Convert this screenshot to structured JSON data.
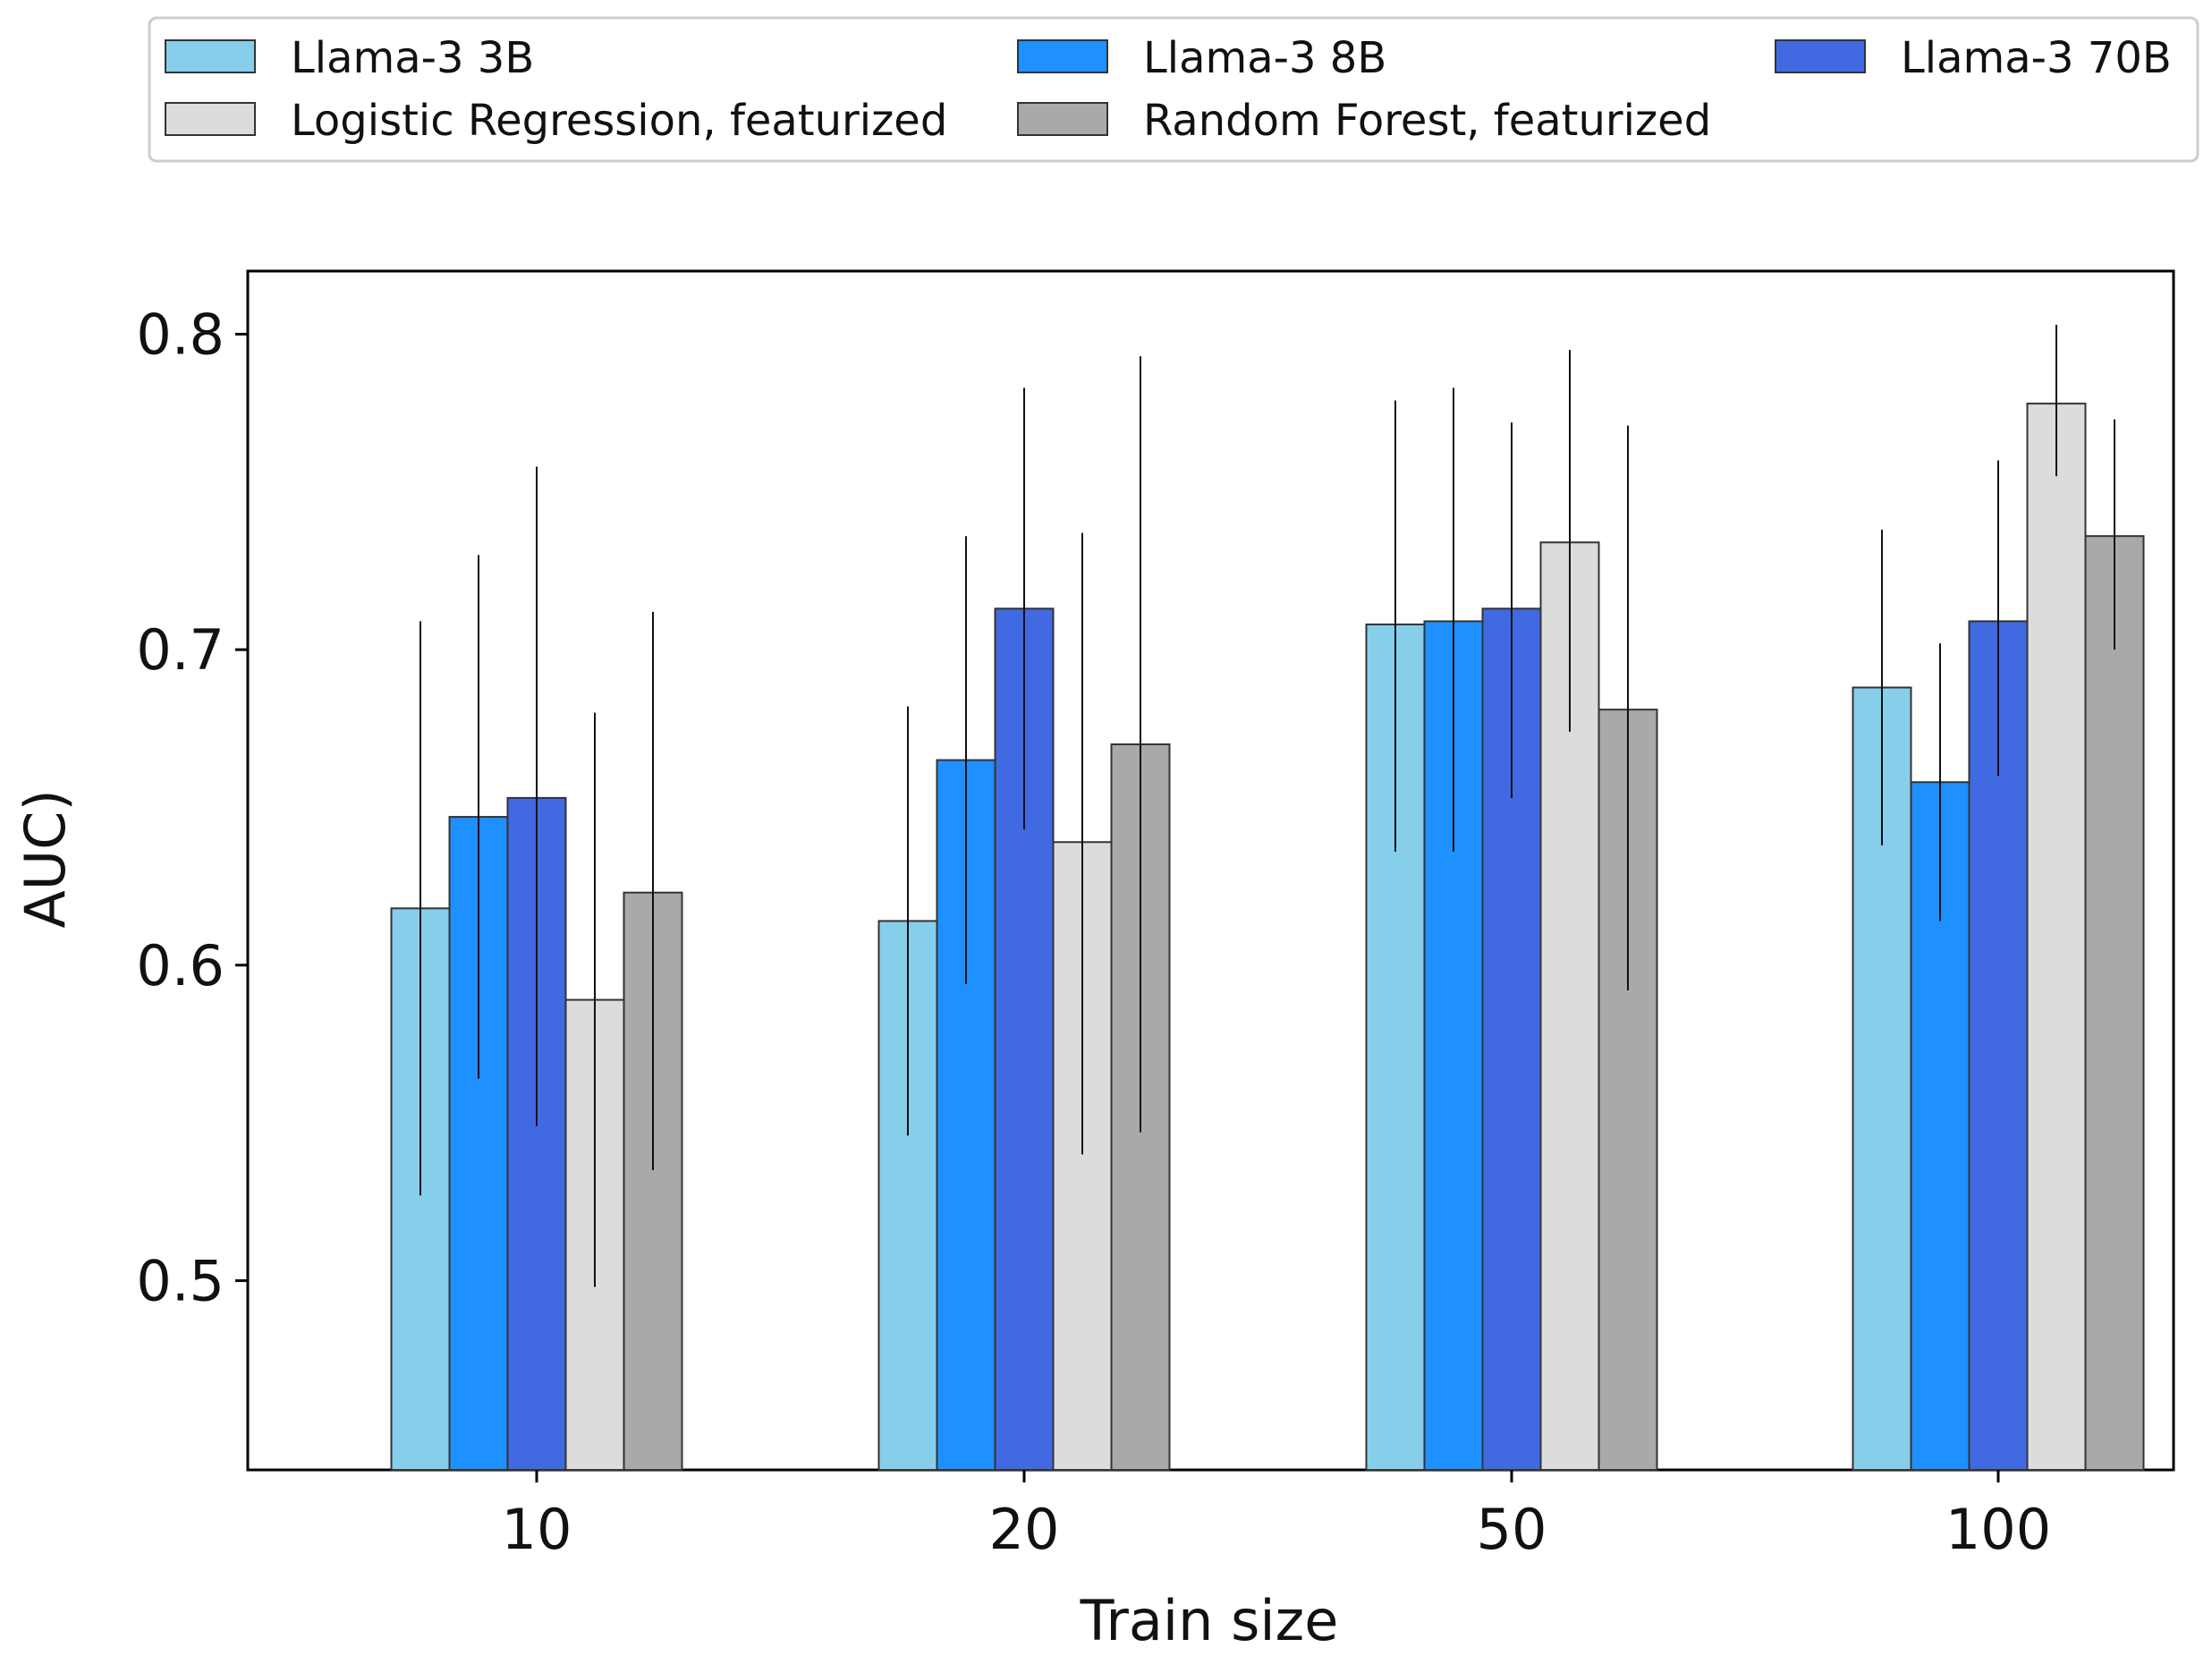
{
  "chart_data": {
    "type": "bar",
    "title": "",
    "xlabel": "Train size",
    "ylabel": "AUC)",
    "categories": [
      "10",
      "20",
      "50",
      "100"
    ],
    "ylim": [
      0.44,
      0.82
    ],
    "yticks": [
      0.5,
      0.6,
      0.7,
      0.8
    ],
    "ytick_labels": [
      "0.5",
      "0.6",
      "0.7",
      "0.8"
    ],
    "grid": false,
    "legend_position": "top",
    "series": [
      {
        "name": "Llama-3 3B",
        "color": "#87CEEB",
        "values": [
          0.618,
          0.614,
          0.708,
          0.688
        ],
        "err_low": [
          0.527,
          0.546,
          0.636,
          0.638
        ],
        "err_high": [
          0.709,
          0.682,
          0.779,
          0.738
        ]
      },
      {
        "name": "Llama-3 8B",
        "color": "#1E90FF",
        "values": [
          0.647,
          0.665,
          0.709,
          0.658
        ],
        "err_low": [
          0.564,
          0.594,
          0.636,
          0.614
        ],
        "err_high": [
          0.73,
          0.736,
          0.783,
          0.702
        ]
      },
      {
        "name": "Llama-3 70B",
        "color": "#4169E1",
        "values": [
          0.653,
          0.713,
          0.713,
          0.709
        ],
        "err_low": [
          0.549,
          0.643,
          0.653,
          0.66
        ],
        "err_high": [
          0.758,
          0.783,
          0.772,
          0.76
        ]
      },
      {
        "name": "Logistic Regression, featurized",
        "color": "#DCDCDC",
        "values": [
          0.589,
          0.639,
          0.734,
          0.778
        ],
        "err_low": [
          0.498,
          0.54,
          0.674,
          0.755
        ],
        "err_high": [
          0.68,
          0.737,
          0.795,
          0.803
        ]
      },
      {
        "name": "Random Forest, featurized",
        "color": "#A9A9A9",
        "values": [
          0.623,
          0.67,
          0.681,
          0.736
        ],
        "err_low": [
          0.535,
          0.547,
          0.592,
          0.7
        ],
        "err_high": [
          0.712,
          0.793,
          0.771,
          0.773
        ]
      }
    ]
  }
}
